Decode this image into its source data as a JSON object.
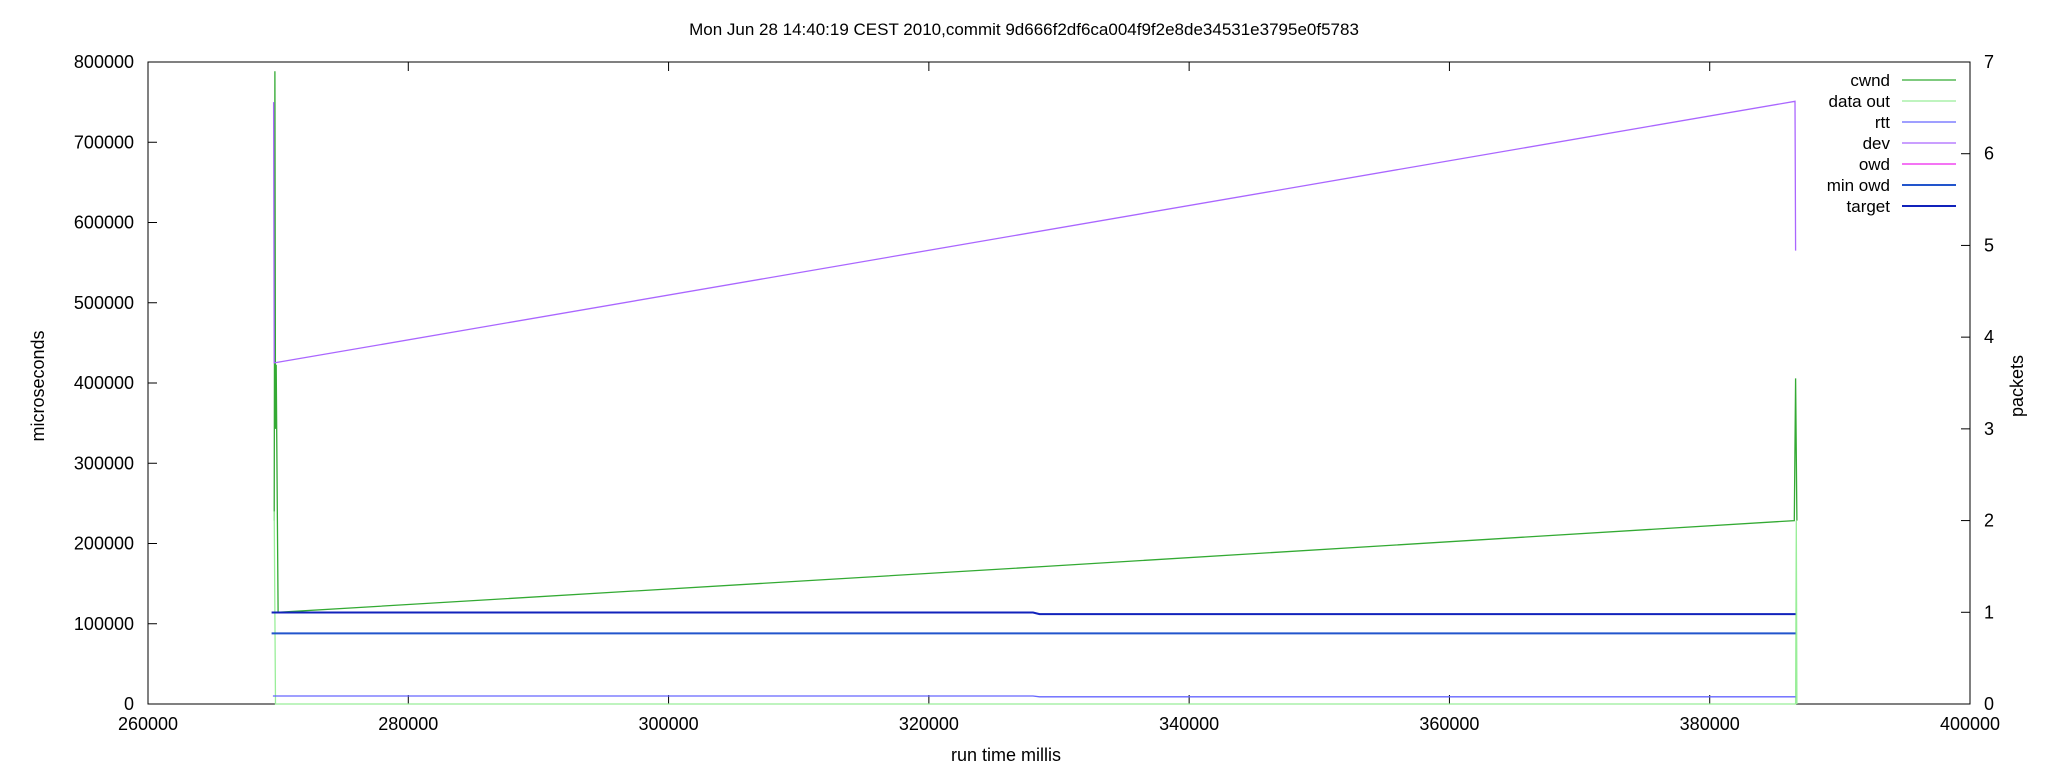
{
  "chart_data": {
    "type": "line",
    "title": "Mon Jun 28 14:40:19 CEST 2010,commit 9d666f2df6ca004f9f2e8de34531e3795e0f5783",
    "xlabel": "run time millis",
    "ylabel": "microseconds",
    "y2label": "packets",
    "xlim": [
      260000,
      400000
    ],
    "ylim": [
      0,
      800000
    ],
    "y2lim": [
      0,
      7
    ],
    "x_ticks": [
      "260000",
      "280000",
      "300000",
      "320000",
      "340000",
      "360000",
      "380000",
      "400000"
    ],
    "y_ticks": [
      "0",
      "100000",
      "200000",
      "300000",
      "400000",
      "500000",
      "600000",
      "700000",
      "800000"
    ],
    "y2_ticks": [
      "0",
      "1",
      "2",
      "3",
      "4",
      "5",
      "6",
      "7"
    ],
    "grid": false,
    "legend_position": "top-right",
    "series": [
      {
        "name": "cwnd",
        "axis": "y2",
        "color": "#33aa33",
        "points": [
          [
            269700,
            2.0
          ],
          [
            269750,
            6.9
          ],
          [
            269800,
            3.0
          ],
          [
            269850,
            3.7
          ],
          [
            270000,
            1.0
          ],
          [
            329000,
            1.5
          ],
          [
            386500,
            2.0
          ],
          [
            386600,
            3.55
          ],
          [
            386700,
            2.0
          ]
        ]
      },
      {
        "name": "data out",
        "axis": "y2",
        "color": "#99ee99",
        "points": [
          [
            269700,
            2.1
          ],
          [
            269800,
            0.0
          ],
          [
            386600,
            0.0
          ],
          [
            386650,
            2.0
          ],
          [
            386700,
            0.0
          ]
        ]
      },
      {
        "name": "rtt",
        "axis": "y",
        "color": "#6666ff",
        "points": [
          [
            269600,
            10000
          ],
          [
            328000,
            10000
          ],
          [
            328500,
            9000
          ],
          [
            386600,
            9000
          ]
        ]
      },
      {
        "name": "dev",
        "axis": "y",
        "color": "#aa66ff",
        "points": [
          [
            269650,
            750000
          ],
          [
            269700,
            425000
          ],
          [
            386550,
            751000
          ],
          [
            386600,
            565000
          ]
        ]
      },
      {
        "name": "owd",
        "axis": "y",
        "color": "#ee22ee",
        "points": []
      },
      {
        "name": "min owd",
        "axis": "y",
        "color": "#2255cc",
        "points": [
          [
            269500,
            88000
          ],
          [
            386600,
            88000
          ]
        ]
      },
      {
        "name": "target",
        "axis": "y",
        "color": "#1122bb",
        "points": [
          [
            269500,
            114000
          ],
          [
            328000,
            114000
          ],
          [
            328500,
            112000
          ],
          [
            386600,
            112000
          ]
        ]
      }
    ]
  }
}
